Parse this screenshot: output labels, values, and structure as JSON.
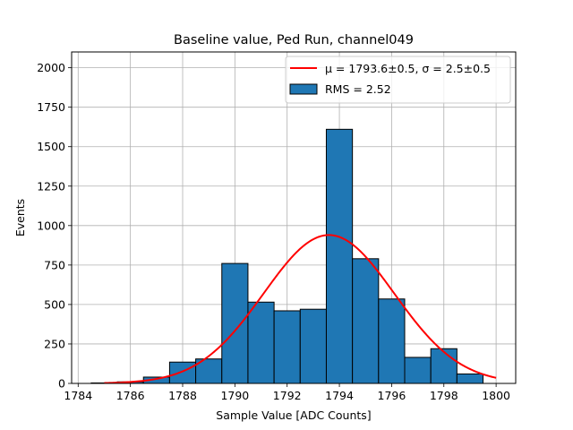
{
  "chart_data": {
    "type": "bar",
    "title": "Baseline value, Ped Run, channel049",
    "xlabel": "Sample Value [ADC Counts]",
    "ylabel": "Events",
    "xlim": [
      1783.75,
      1800.75
    ],
    "ylim": [
      0,
      2100
    ],
    "xticks": [
      1784,
      1786,
      1788,
      1790,
      1792,
      1794,
      1796,
      1798,
      1800
    ],
    "yticks": [
      0,
      250,
      500,
      750,
      1000,
      1250,
      1500,
      1750,
      2000
    ],
    "grid": true,
    "legend_position": "upper right",
    "histogram": {
      "name": "RMS = 2.52",
      "color": "#1f77b4",
      "edge_color": "#000000",
      "bin_width": 1,
      "bins": [
        {
          "x": 1785,
          "count": 3
        },
        {
          "x": 1786,
          "count": 10
        },
        {
          "x": 1787,
          "count": 40
        },
        {
          "x": 1788,
          "count": 135
        },
        {
          "x": 1789,
          "count": 155
        },
        {
          "x": 1790,
          "count": 760
        },
        {
          "x": 1791,
          "count": 515
        },
        {
          "x": 1792,
          "count": 460
        },
        {
          "x": 1793,
          "count": 470
        },
        {
          "x": 1794,
          "count": 1610
        },
        {
          "x": 1795,
          "count": 790
        },
        {
          "x": 1796,
          "count": 535
        },
        {
          "x": 1797,
          "count": 165
        },
        {
          "x": 1798,
          "count": 220
        },
        {
          "x": 1799,
          "count": 60
        }
      ]
    },
    "fit": {
      "name": "μ = 1793.6±0.5, σ = 2.5±0.5",
      "type": "gaussian",
      "color": "#ff0000",
      "mu": 1793.6,
      "sigma": 2.5,
      "amplitude": 940,
      "x_range": [
        1785,
        1800
      ]
    }
  }
}
